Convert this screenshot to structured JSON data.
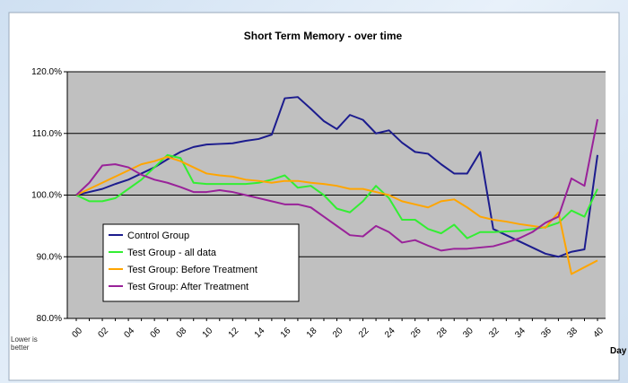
{
  "chart_data": {
    "type": "line",
    "title": "Short Term Memory - over time",
    "x_label": "Day",
    "annotation": "Lower is better",
    "categories": [
      "00",
      null,
      "02",
      null,
      "04",
      null,
      "06",
      null,
      "08",
      null,
      "10",
      null,
      "12",
      null,
      "14",
      null,
      "16",
      null,
      "18",
      null,
      "20",
      null,
      "22",
      null,
      "24",
      null,
      "26",
      null,
      "28",
      null,
      "30",
      null,
      "32",
      null,
      "34",
      null,
      "36",
      null,
      "38",
      null,
      "40"
    ],
    "ylim": [
      80,
      120
    ],
    "yticks": [
      {
        "value": 80,
        "label": "80.0%"
      },
      {
        "value": 90,
        "label": "90.0%"
      },
      {
        "value": 100,
        "label": "100.0%"
      },
      {
        "value": 110,
        "label": "110.0%"
      },
      {
        "value": 120,
        "label": "120.0%"
      }
    ],
    "grid": true,
    "legend": "lower left",
    "series": [
      {
        "name": "Control Group",
        "color": "#1c1c8e",
        "values": [
          100,
          100.5,
          101,
          101.8,
          102.5,
          103.5,
          104.5,
          105.8,
          107,
          107.8,
          108.2,
          108.3,
          108.4,
          108.8,
          109.1,
          109.8,
          115.7,
          115.9,
          114,
          112,
          110.7,
          113,
          112.2,
          110,
          110.5,
          108.5,
          107,
          106.7,
          105,
          103.5,
          103.5,
          107,
          94.5,
          93.5,
          92.5,
          91.5,
          90.5,
          90,
          90.8,
          91.2,
          106.5
        ]
      },
      {
        "name": "Test Group - all data",
        "color": "#33ee33",
        "values": [
          100,
          99,
          99,
          99.5,
          101,
          102.5,
          104.5,
          106.5,
          106,
          102,
          101.8,
          101.8,
          101.8,
          101.8,
          102,
          102.5,
          103.2,
          101.2,
          101.5,
          100,
          97.8,
          97.2,
          99,
          101.5,
          99.5,
          96,
          96,
          94.5,
          93.8,
          95.2,
          93,
          94,
          94,
          94.1,
          94.2,
          94.5,
          94.8,
          95.5,
          97.5,
          96.5,
          101
        ]
      },
      {
        "name": "Test Group: Before Treatment",
        "color": "#ffa500",
        "values": [
          100,
          101,
          102,
          103,
          104,
          105,
          105.5,
          106.2,
          105.5,
          104.5,
          103.5,
          103.2,
          103,
          102.5,
          102.3,
          102,
          102.3,
          102.3,
          102,
          101.8,
          101.5,
          101,
          101,
          100.5,
          100,
          99,
          98.5,
          98,
          99,
          99.3,
          98,
          96.5,
          96,
          95.7,
          95.3,
          95,
          94.7,
          97.2,
          87.2,
          88.3,
          89.4
        ]
      },
      {
        "name": "Test Group: After Treatment",
        "color": "#992299",
        "values": [
          100,
          102,
          104.8,
          105,
          104.5,
          103.3,
          102.5,
          102,
          101.3,
          100.5,
          100.5,
          100.8,
          100.5,
          100,
          99.5,
          99,
          98.5,
          98.5,
          98,
          96.5,
          95,
          93.5,
          93.3,
          95,
          94,
          92.3,
          92.7,
          91.8,
          91,
          91.3,
          91.3,
          91.5,
          91.7,
          92.3,
          93,
          94,
          95.5,
          96.5,
          102.7,
          101.5,
          112.3
        ]
      }
    ]
  }
}
